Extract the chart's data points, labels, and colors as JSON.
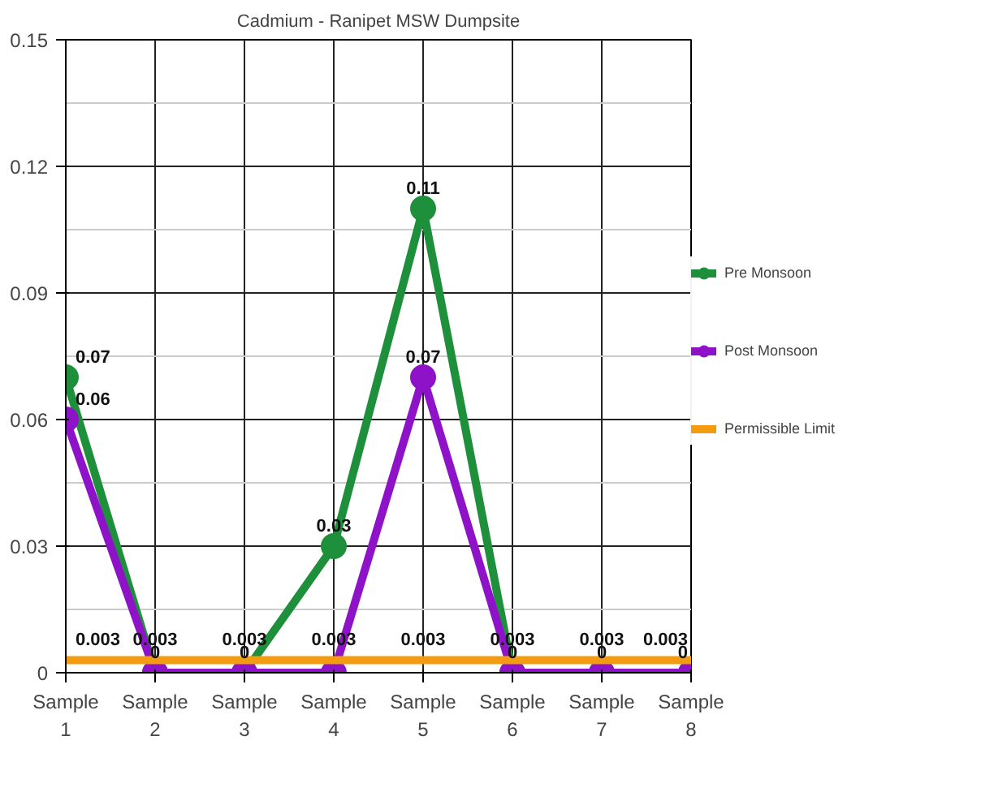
{
  "chart_data": {
    "type": "line",
    "title": "Cadmium - Ranipet MSW Dumpsite",
    "categories": [
      "Sample 1",
      "Sample 2",
      "Sample 3",
      "Sample 4",
      "Sample 5",
      "Sample 6",
      "Sample 7",
      "Sample 8"
    ],
    "series": [
      {
        "name": "Pre Monsoon",
        "color": "#1e8f3a",
        "marker": "circle",
        "values": [
          0.07,
          0,
          0,
          0.03,
          0.11,
          0,
          0,
          0
        ],
        "value_labels": [
          "0.07",
          "0",
          "0",
          "0.03",
          "0.11",
          "0",
          "0",
          "0"
        ]
      },
      {
        "name": "Post Monsoon",
        "color": "#8e12c8",
        "marker": "circle",
        "values": [
          0.06,
          0,
          0,
          0,
          0.07,
          0,
          0,
          0
        ],
        "value_labels": [
          "0.06",
          null,
          null,
          null,
          "0.07",
          null,
          null,
          null
        ]
      },
      {
        "name": "Permissible Limit",
        "color": "#f39c12",
        "marker": "none",
        "values": [
          0.003,
          0.003,
          0.003,
          0.003,
          0.003,
          0.003,
          0.003,
          0.003
        ],
        "value_labels": [
          "0.003",
          "0.003",
          "0.003",
          "0.003",
          "0.003",
          "0.003",
          "0.003",
          "0.003"
        ]
      }
    ],
    "ylim": [
      0,
      0.15
    ],
    "yticks": [
      0,
      0.03,
      0.06,
      0.09,
      0.12,
      0.15
    ],
    "grid": true,
    "legend": "right",
    "line_style": "solid"
  }
}
